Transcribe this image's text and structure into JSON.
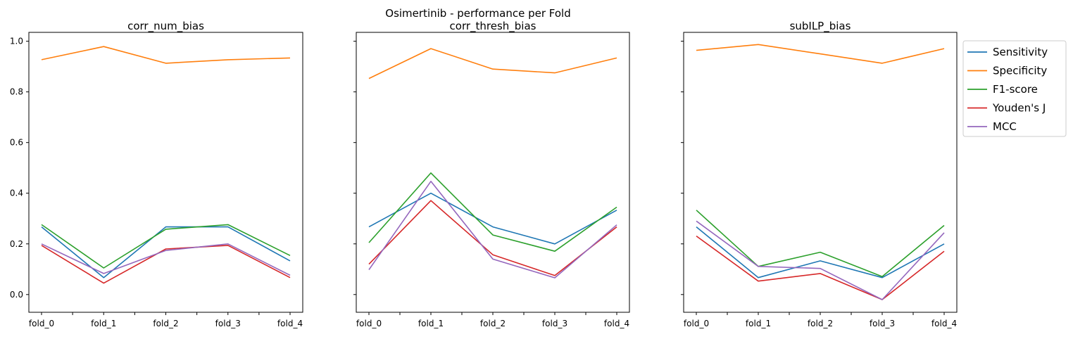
{
  "chart_data": {
    "type": "line",
    "suptitle": "Osimertinib - performance per Fold",
    "categories": [
      "fold_0",
      "fold_1",
      "fold_2",
      "fold_3",
      "fold_4"
    ],
    "ylim": [
      -0.07,
      1.035
    ],
    "yticks": [
      0.0,
      0.2,
      0.4,
      0.6,
      0.8,
      1.0
    ],
    "ytick_labels": [
      "0.0",
      "0.2",
      "0.4",
      "0.6",
      "0.8",
      "1.0"
    ],
    "sharey": true,
    "grid": false,
    "legend_position": "outside-right-top",
    "series_colors": {
      "Sensitivity": "#1f77b4",
      "Specificity": "#ff7f0e",
      "F1-score": "#2ca02c",
      "Youden's J": "#d62728",
      "MCC": "#9467bd"
    },
    "legend": [
      "Sensitivity",
      "Specificity",
      "F1-score",
      "Youden's J",
      "MCC"
    ],
    "panels": [
      {
        "title": "corr_num_bias",
        "series": [
          {
            "name": "Sensitivity",
            "values": [
              0.267,
              0.067,
              0.267,
              0.267,
              0.133
            ]
          },
          {
            "name": "Specificity",
            "values": [
              0.927,
              0.979,
              0.913,
              0.927,
              0.934
            ]
          },
          {
            "name": "F1-score",
            "values": [
              0.276,
              0.105,
              0.258,
              0.276,
              0.154
            ]
          },
          {
            "name": "Youden's J",
            "values": [
              0.194,
              0.045,
              0.18,
              0.194,
              0.067
            ]
          },
          {
            "name": "MCC",
            "values": [
              0.2,
              0.083,
              0.174,
              0.2,
              0.076
            ]
          }
        ]
      },
      {
        "title": "corr_thresh_bias",
        "series": [
          {
            "name": "Sensitivity",
            "values": [
              0.267,
              0.4,
              0.267,
              0.2,
              0.333
            ]
          },
          {
            "name": "Specificity",
            "values": [
              0.853,
              0.971,
              0.89,
              0.875,
              0.934
            ]
          },
          {
            "name": "F1-score",
            "values": [
              0.205,
              0.48,
              0.235,
              0.171,
              0.345
            ]
          },
          {
            "name": "Youden's J",
            "values": [
              0.12,
              0.371,
              0.157,
              0.075,
              0.267
            ]
          },
          {
            "name": "MCC",
            "values": [
              0.098,
              0.447,
              0.14,
              0.066,
              0.275
            ]
          }
        ]
      },
      {
        "title": "subILP_bias",
        "series": [
          {
            "name": "Sensitivity",
            "values": [
              0.267,
              0.067,
              0.133,
              0.067,
              0.2
            ]
          },
          {
            "name": "Specificity",
            "values": [
              0.964,
              0.987,
              0.95,
              0.913,
              0.971
            ]
          },
          {
            "name": "F1-score",
            "values": [
              0.333,
              0.111,
              0.167,
              0.071,
              0.273
            ]
          },
          {
            "name": "Youden's J",
            "values": [
              0.231,
              0.053,
              0.083,
              -0.02,
              0.171
            ]
          },
          {
            "name": "MCC",
            "values": [
              0.29,
              0.111,
              0.103,
              -0.02,
              0.244
            ]
          }
        ]
      }
    ]
  }
}
